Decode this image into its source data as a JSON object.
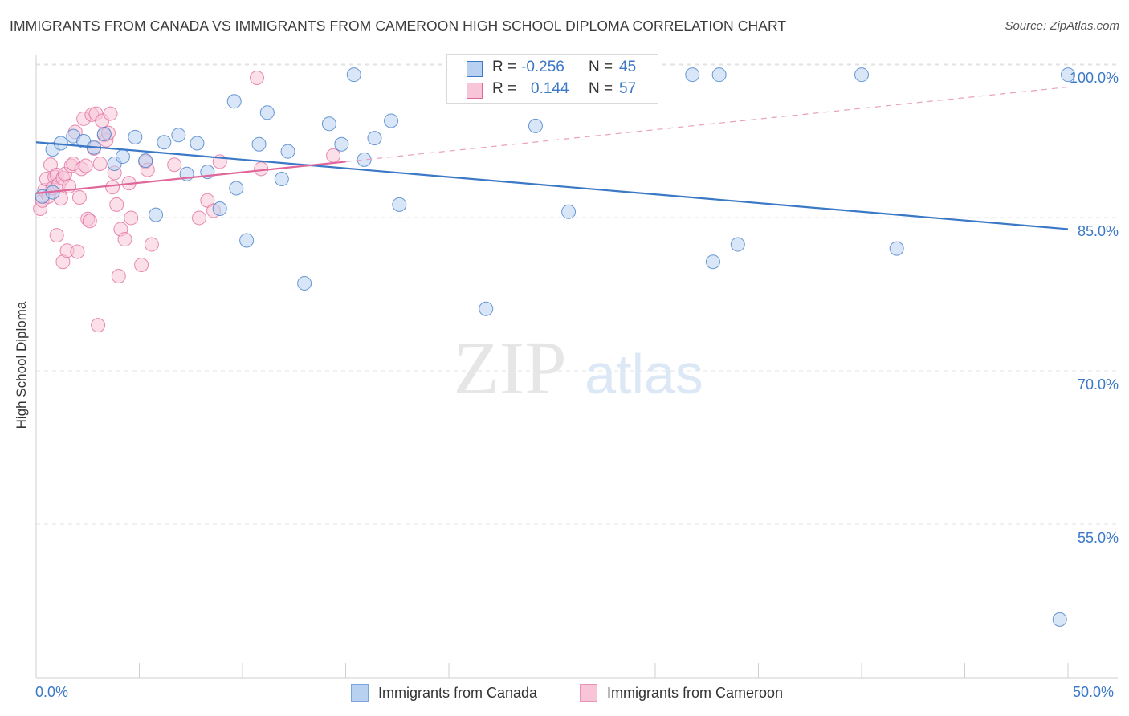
{
  "header": {
    "title": "IMMIGRANTS FROM CANADA VS IMMIGRANTS FROM CAMEROON HIGH SCHOOL DIPLOMA CORRELATION CHART",
    "source": "Source: ZipAtlas.com"
  },
  "legend": {
    "r_label": "R =",
    "n_label": "N =",
    "rows": [
      {
        "r": "-0.256",
        "n": "45"
      },
      {
        "r": "0.144",
        "n": "57"
      }
    ]
  },
  "watermark": {
    "zip": "ZIP",
    "atlas": "atlas"
  },
  "chart_data": {
    "type": "scatter",
    "title": "IMMIGRANTS FROM CANADA VS IMMIGRANTS FROM CAMEROON HIGH SCHOOL DIPLOMA CORRELATION CHART",
    "xlabel": "",
    "ylabel": "High School Diploma",
    "xlim": [
      0,
      50
    ],
    "ylim": [
      40,
      101.5
    ],
    "x_tick_labels": [
      "0.0%",
      "50.0%"
    ],
    "y_ticks": [
      {
        "value": 100,
        "label": "100.0%"
      },
      {
        "value": 85,
        "label": "85.0%"
      },
      {
        "value": 70,
        "label": "70.0%"
      },
      {
        "value": 55,
        "label": "55.0%"
      }
    ],
    "grid": true,
    "legend_position": "bottom",
    "series": [
      {
        "name": "Immigrants from Canada",
        "color": "#3b78c6",
        "fill": "#b8d1f1",
        "points": [
          [
            0.3,
            88.4
          ],
          [
            0.8,
            93.0
          ],
          [
            1.2,
            93.6
          ],
          [
            1.8,
            94.3
          ],
          [
            2.3,
            93.8
          ],
          [
            2.8,
            93.2
          ],
          [
            3.3,
            94.5
          ],
          [
            3.8,
            91.6
          ],
          [
            4.2,
            92.3
          ],
          [
            4.8,
            94.2
          ],
          [
            5.3,
            91.9
          ],
          [
            5.8,
            86.6
          ],
          [
            6.2,
            93.7
          ],
          [
            6.9,
            94.4
          ],
          [
            7.3,
            90.6
          ],
          [
            7.8,
            93.6
          ],
          [
            8.3,
            90.8
          ],
          [
            8.9,
            87.2
          ],
          [
            9.6,
            97.7
          ],
          [
            9.7,
            89.2
          ],
          [
            10.2,
            84.1
          ],
          [
            10.8,
            93.5
          ],
          [
            11.2,
            96.6
          ],
          [
            11.9,
            90.1
          ],
          [
            12.2,
            92.8
          ],
          [
            13.0,
            79.9
          ],
          [
            14.2,
            95.5
          ],
          [
            14.8,
            93.5
          ],
          [
            15.4,
            100.3
          ],
          [
            15.9,
            92.0
          ],
          [
            16.4,
            94.1
          ],
          [
            17.2,
            95.8
          ],
          [
            17.6,
            87.6
          ],
          [
            21.8,
            77.4
          ],
          [
            24.2,
            95.3
          ],
          [
            25.8,
            86.9
          ],
          [
            31.8,
            100.3
          ],
          [
            33.1,
            100.3
          ],
          [
            32.8,
            82.0
          ],
          [
            34.0,
            83.7
          ],
          [
            40.0,
            100.3
          ],
          [
            41.7,
            83.3
          ],
          [
            50.0,
            100.3
          ],
          [
            49.6,
            47.0
          ],
          [
            0.8,
            88.8
          ]
        ],
        "trend": {
          "x": [
            0,
            50
          ],
          "y": [
            93.7,
            85.2
          ]
        }
      },
      {
        "name": "Immigrants from Cameroon",
        "color": "#e0679a",
        "fill": "#f7c5d7",
        "points": [
          [
            0.2,
            87.2
          ],
          [
            0.3,
            88.0
          ],
          [
            0.4,
            89.0
          ],
          [
            0.5,
            90.1
          ],
          [
            0.6,
            88.4
          ],
          [
            0.7,
            91.5
          ],
          [
            0.8,
            89.2
          ],
          [
            0.9,
            90.3
          ],
          [
            1.0,
            90.5
          ],
          [
            1.0,
            84.6
          ],
          [
            1.1,
            89.6
          ],
          [
            1.2,
            88.2
          ],
          [
            1.3,
            90.2
          ],
          [
            1.3,
            82.0
          ],
          [
            1.4,
            90.6
          ],
          [
            1.5,
            83.1
          ],
          [
            1.7,
            91.4
          ],
          [
            1.8,
            91.6
          ],
          [
            1.9,
            94.7
          ],
          [
            2.0,
            83.0
          ],
          [
            2.1,
            88.3
          ],
          [
            2.2,
            91.1
          ],
          [
            2.3,
            96.0
          ],
          [
            2.4,
            91.4
          ],
          [
            2.5,
            86.2
          ],
          [
            2.6,
            86.0
          ],
          [
            2.7,
            96.4
          ],
          [
            2.8,
            93.1
          ],
          [
            2.9,
            96.5
          ],
          [
            3.0,
            75.8
          ],
          [
            3.1,
            91.6
          ],
          [
            3.2,
            95.8
          ],
          [
            3.3,
            94.4
          ],
          [
            3.4,
            93.9
          ],
          [
            3.5,
            94.6
          ],
          [
            3.6,
            96.5
          ],
          [
            3.7,
            89.3
          ],
          [
            3.8,
            90.7
          ],
          [
            3.9,
            87.6
          ],
          [
            4.0,
            80.6
          ],
          [
            4.1,
            85.2
          ],
          [
            4.3,
            84.2
          ],
          [
            4.5,
            89.7
          ],
          [
            4.6,
            86.3
          ],
          [
            5.1,
            81.7
          ],
          [
            5.3,
            91.8
          ],
          [
            5.4,
            91.0
          ],
          [
            5.6,
            83.7
          ],
          [
            6.7,
            91.5
          ],
          [
            7.9,
            86.3
          ],
          [
            8.3,
            88.0
          ],
          [
            8.6,
            87.0
          ],
          [
            8.9,
            91.8
          ],
          [
            10.7,
            100.0
          ],
          [
            10.9,
            91.1
          ],
          [
            14.4,
            92.4
          ],
          [
            1.6,
            89.4
          ]
        ],
        "trend": {
          "x": [
            0,
            15
          ],
          "y": [
            88.7,
            91.8
          ]
        },
        "trend_dashed": {
          "x": [
            15,
            50
          ],
          "y": [
            91.8,
            99.1
          ]
        }
      }
    ]
  }
}
